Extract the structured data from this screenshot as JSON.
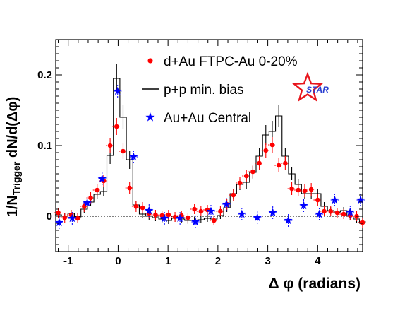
{
  "chart_data": {
    "type": "scatter",
    "xlabel": "Δ φ (radians)",
    "ylabel": "1/N",
    "ylabel_sub": "Trigger",
    "ylabel_tail": " dN/d(Δφ)",
    "xlim": [
      -1.25,
      4.9
    ],
    "ylim": [
      -0.05,
      0.25
    ],
    "xticks": [
      {
        "v": -1,
        "label": "-1"
      },
      {
        "v": 0,
        "label": "0"
      },
      {
        "v": 1,
        "label": "1"
      },
      {
        "v": 2,
        "label": "2"
      },
      {
        "v": 3,
        "label": "3"
      },
      {
        "v": 4,
        "label": "4"
      }
    ],
    "yticks": [
      {
        "v": 0,
        "label": "0"
      },
      {
        "v": 0.1,
        "label": "0.1"
      },
      {
        "v": 0.2,
        "label": "0.2"
      }
    ],
    "legend": [
      "d+Au FTPC-Au 0-20%",
      "p+p min. bias",
      "Au+Au Central"
    ],
    "logo": "STAR",
    "colors": {
      "dau": "#ff0000",
      "auau": "#0000ff",
      "pp": "#000000",
      "logo_star": "#e8141b",
      "logo_text": "#2a3fd0"
    },
    "series": [
      {
        "name": "d+Au FTPC-Au 0-20%",
        "marker": "circle",
        "x": [
          -1.2,
          -1.07,
          -0.94,
          -0.81,
          -0.68,
          -0.55,
          -0.42,
          -0.29,
          -0.16,
          -0.03,
          0.1,
          0.23,
          0.36,
          0.49,
          0.62,
          0.75,
          0.88,
          1.01,
          1.14,
          1.27,
          1.4,
          1.53,
          1.66,
          1.79,
          1.92,
          2.05,
          2.18,
          2.31,
          2.44,
          2.57,
          2.7,
          2.83,
          2.96,
          3.09,
          3.22,
          3.35,
          3.48,
          3.61,
          3.74,
          3.87,
          4.0,
          4.13,
          4.26,
          4.39,
          4.52,
          4.65,
          4.78,
          4.9
        ],
        "y": [
          0.005,
          -0.002,
          0.002,
          -0.003,
          0.014,
          0.026,
          0.037,
          0.05,
          0.1,
          0.127,
          0.092,
          0.04,
          0.014,
          0.012,
          0.004,
          0.002,
          0.001,
          0.002,
          -0.001,
          0.001,
          -0.002,
          0.01,
          0.007,
          0.009,
          -0.006,
          0.007,
          0.017,
          0.03,
          0.047,
          0.057,
          0.063,
          0.075,
          0.093,
          0.101,
          0.072,
          0.075,
          0.039,
          0.037,
          0.036,
          0.038,
          0.023,
          0.007,
          0.007,
          0.005,
          0.003,
          0.001,
          0.0,
          -0.009
        ],
        "yerr": [
          0.007,
          0.007,
          0.007,
          0.007,
          0.008,
          0.008,
          0.008,
          0.009,
          0.011,
          0.012,
          0.011,
          0.009,
          0.008,
          0.008,
          0.007,
          0.007,
          0.007,
          0.007,
          0.007,
          0.007,
          0.007,
          0.007,
          0.007,
          0.007,
          0.007,
          0.007,
          0.008,
          0.008,
          0.009,
          0.009,
          0.009,
          0.01,
          0.01,
          0.011,
          0.01,
          0.01,
          0.009,
          0.009,
          0.009,
          0.009,
          0.008,
          0.007,
          0.007,
          0.007,
          0.007,
          0.007,
          0.007,
          0.007
        ]
      },
      {
        "name": "p+p min. bias",
        "marker": "step",
        "x": [
          -1.2,
          -1.07,
          -0.94,
          -0.81,
          -0.68,
          -0.55,
          -0.42,
          -0.29,
          -0.16,
          -0.03,
          0.1,
          0.23,
          0.36,
          0.49,
          0.62,
          0.75,
          0.88,
          1.01,
          1.14,
          1.27,
          1.4,
          1.53,
          1.66,
          1.79,
          1.92,
          2.05,
          2.18,
          2.31,
          2.44,
          2.57,
          2.7,
          2.83,
          2.96,
          3.09,
          3.22,
          3.35,
          3.48,
          3.61,
          3.74,
          3.87,
          4.0,
          4.13,
          4.26,
          4.39,
          4.52,
          4.65,
          4.78,
          4.9
        ],
        "y": [
          0.002,
          0.0,
          0.004,
          -0.001,
          0.01,
          0.02,
          0.031,
          0.035,
          0.086,
          0.195,
          0.14,
          0.08,
          0.016,
          0.003,
          0.0,
          -0.002,
          -0.004,
          -0.006,
          -0.003,
          -0.004,
          -0.006,
          -0.006,
          -0.005,
          -0.003,
          -0.004,
          0.001,
          0.012,
          0.032,
          0.045,
          0.048,
          0.062,
          0.085,
          0.115,
          0.12,
          0.142,
          0.085,
          0.06,
          0.045,
          0.032,
          0.032,
          0.032,
          0.014,
          0.008,
          0.006,
          0.008,
          0.0,
          -0.004,
          -0.008
        ],
        "yerr": [
          0.005,
          0.005,
          0.005,
          0.005,
          0.006,
          0.006,
          0.006,
          0.007,
          0.012,
          0.021,
          0.017,
          0.013,
          0.006,
          0.005,
          0.005,
          0.005,
          0.005,
          0.005,
          0.005,
          0.005,
          0.005,
          0.005,
          0.005,
          0.005,
          0.005,
          0.005,
          0.006,
          0.007,
          0.008,
          0.009,
          0.009,
          0.012,
          0.014,
          0.015,
          0.016,
          0.012,
          0.009,
          0.008,
          0.007,
          0.007,
          0.007,
          0.006,
          0.005,
          0.005,
          0.005,
          0.005,
          0.005,
          0.005
        ]
      },
      {
        "name": "Au+Au Central",
        "marker": "star",
        "x": [
          -1.18,
          -0.92,
          -0.62,
          -0.32,
          -0.01,
          0.31,
          0.62,
          0.93,
          1.24,
          1.55,
          1.86,
          2.17,
          2.48,
          2.79,
          3.1,
          3.41,
          3.72,
          4.03,
          4.34,
          4.65,
          4.86
        ],
        "y": [
          -0.009,
          -0.003,
          0.019,
          0.053,
          0.177,
          0.084,
          0.008,
          -0.003,
          -0.003,
          -0.008,
          0.007,
          0.017,
          0.003,
          -0.002,
          0.005,
          -0.006,
          0.015,
          0.003,
          0.023,
          0.006,
          0.023
        ],
        "xerr": [
          0.08,
          0.08,
          0.08,
          0.08,
          0.08,
          0.08,
          0.08,
          0.08,
          0.08,
          0.08,
          0.08,
          0.08,
          0.08,
          0.08,
          0.08,
          0.08,
          0.08,
          0.08,
          0.08,
          0.08,
          0.08
        ]
      }
    ]
  }
}
